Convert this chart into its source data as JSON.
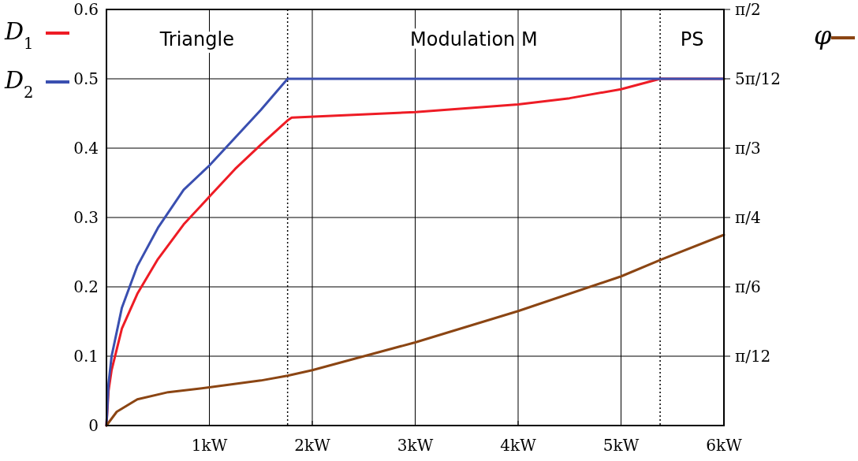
{
  "chart_data": {
    "type": "line",
    "series": [
      {
        "name": "D$_{1}$",
        "color": "#ee1c25",
        "x": [
          0,
          0.02,
          0.05,
          0.15,
          0.3,
          0.5,
          0.75,
          1,
          1.25,
          1.5,
          1.76,
          1.8,
          3,
          4,
          4.5,
          5,
          5.38,
          6
        ],
        "values": [
          0,
          0.05,
          0.08,
          0.14,
          0.19,
          0.24,
          0.29,
          0.33,
          0.37,
          0.405,
          0.44,
          0.444,
          0.452,
          0.463,
          0.472,
          0.485,
          0.5,
          0.5
        ]
      },
      {
        "name": "D$_{2}$",
        "color": "#3a4fb0",
        "x": [
          0,
          0.02,
          0.05,
          0.15,
          0.3,
          0.5,
          0.75,
          1,
          1.25,
          1.5,
          1.76,
          6
        ],
        "values": [
          0,
          0.06,
          0.1,
          0.17,
          0.23,
          0.285,
          0.34,
          0.375,
          0.415,
          0.455,
          0.5,
          0.5
        ]
      },
      {
        "name": "φ",
        "color": "#8b4513",
        "axis": "y2",
        "x": [
          0,
          0.1,
          0.3,
          0.6,
          1,
          1.5,
          1.76,
          2,
          3,
          4,
          5,
          5.4,
          6
        ],
        "values": [
          0,
          0.052,
          0.099,
          0.126,
          0.144,
          0.17,
          0.188,
          0.209,
          0.314,
          0.432,
          0.563,
          0.628,
          0.72
        ]
      }
    ],
    "xlim": [
      0,
      6
    ],
    "xticks": [
      {
        "value": 1,
        "label": "1kW"
      },
      {
        "value": 2,
        "label": "2kW"
      },
      {
        "value": 3,
        "label": "3kW"
      },
      {
        "value": 4,
        "label": "4kW"
      },
      {
        "value": 5,
        "label": "5kW"
      },
      {
        "value": 6,
        "label": "6kW"
      }
    ],
    "ylim": [
      0,
      0.6
    ],
    "yticks": [
      0,
      0.1,
      0.2,
      0.3,
      0.4,
      0.5,
      0.6
    ],
    "y2lim": [
      0,
      1.5708
    ],
    "y2ticks": [
      {
        "value": 0.2618,
        "label": "π/12"
      },
      {
        "value": 0.5236,
        "label": "π/6"
      },
      {
        "value": 0.7854,
        "label": "π/4"
      },
      {
        "value": 1.0472,
        "label": "π/3"
      },
      {
        "value": 1.309,
        "label": "5π/12"
      },
      {
        "value": 1.5708,
        "label": "π/2"
      }
    ],
    "ref_lines": [
      {
        "axis": "x",
        "value": 1.76,
        "line_style": "dotted",
        "color": "#000000"
      },
      {
        "axis": "x",
        "value": 5.38,
        "line_style": "dotted",
        "color": "#000000"
      }
    ],
    "annotations": [
      "Triangle",
      "Modulation M",
      "PS"
    ],
    "grid": true,
    "legend": "left",
    "line_style": "solid",
    "marker": "none"
  }
}
